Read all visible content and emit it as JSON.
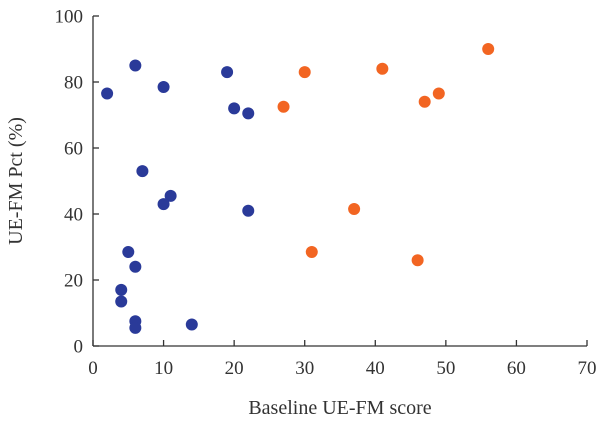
{
  "chart_data": {
    "type": "scatter",
    "title": "",
    "xlabel": "Baseline UE-FM score",
    "ylabel": "UE-FM Pct (%)",
    "xlim": [
      0,
      70
    ],
    "ylim": [
      0,
      100
    ],
    "xticks": [
      0,
      10,
      20,
      30,
      40,
      50,
      60,
      70
    ],
    "yticks": [
      0,
      20,
      40,
      60,
      80,
      100
    ],
    "grid": false,
    "legend": "none",
    "series": [
      {
        "color": "#2a3a99",
        "points": [
          {
            "x": 2,
            "y": 76.5
          },
          {
            "x": 6,
            "y": 85
          },
          {
            "x": 10,
            "y": 78.5
          },
          {
            "x": 19,
            "y": 83
          },
          {
            "x": 20,
            "y": 72
          },
          {
            "x": 22,
            "y": 70.5
          },
          {
            "x": 7,
            "y": 53
          },
          {
            "x": 11,
            "y": 45.5
          },
          {
            "x": 10,
            "y": 43
          },
          {
            "x": 22,
            "y": 41
          },
          {
            "x": 5,
            "y": 28.5
          },
          {
            "x": 6,
            "y": 24
          },
          {
            "x": 4,
            "y": 17
          },
          {
            "x": 4,
            "y": 13.5
          },
          {
            "x": 6,
            "y": 7.5
          },
          {
            "x": 6,
            "y": 5.5
          },
          {
            "x": 14,
            "y": 6.5
          }
        ]
      },
      {
        "color": "#f26522",
        "points": [
          {
            "x": 27,
            "y": 72.5
          },
          {
            "x": 30,
            "y": 83
          },
          {
            "x": 41,
            "y": 84
          },
          {
            "x": 47,
            "y": 74
          },
          {
            "x": 49,
            "y": 76.5
          },
          {
            "x": 56,
            "y": 90
          },
          {
            "x": 37,
            "y": 41.5
          },
          {
            "x": 31,
            "y": 28.5
          },
          {
            "x": 46,
            "y": 26
          }
        ]
      }
    ]
  }
}
